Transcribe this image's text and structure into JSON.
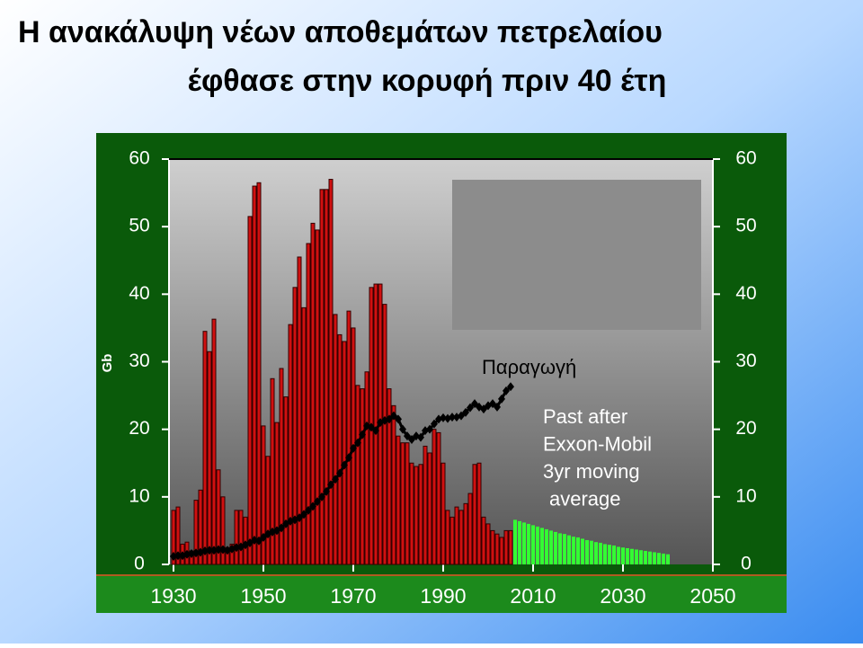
{
  "chart_data": {
    "type": "bar",
    "title": [
      "Η ανακάλυψη νέων αποθεμάτων πετρελαίου",
      "έφθασε στην κορυφή πριν 40 έτη"
    ],
    "ylabel": "Gb",
    "xlim": [
      1929,
      2050
    ],
    "ylim": [
      0,
      60
    ],
    "xticks": [
      1930,
      1950,
      1970,
      1990,
      2010,
      2030,
      2050
    ],
    "yticks": [
      0,
      10,
      20,
      30,
      40,
      50,
      60
    ],
    "note": [
      "Past after",
      "Exxon-Mobil",
      "3yr moving",
      "average"
    ],
    "series": [
      {
        "kind": "bar",
        "color": "#d01010",
        "x": [
          1930,
          1931,
          1932,
          1933,
          1934,
          1935,
          1936,
          1937,
          1938,
          1939,
          1940,
          1941,
          1942,
          1943,
          1944,
          1945,
          1946,
          1947,
          1948,
          1949,
          1950,
          1951,
          1952,
          1953,
          1954,
          1955,
          1956,
          1957,
          1958,
          1959,
          1960,
          1961,
          1962,
          1963,
          1964,
          1965,
          1966,
          1967,
          1968,
          1969,
          1970,
          1971,
          1972,
          1973,
          1974,
          1975,
          1976,
          1977,
          1978,
          1979,
          1980,
          1981,
          1982,
          1983,
          1984,
          1985,
          1986,
          1987,
          1988,
          1989,
          1990,
          1991,
          1992,
          1993,
          1994,
          1995,
          1996,
          1997,
          1998,
          1999,
          2000,
          2001,
          2002,
          2003,
          2004,
          2005
        ],
        "values": [
          8,
          8.5,
          3,
          3.3,
          2,
          9.5,
          11,
          34.5,
          31.5,
          36.3,
          14,
          10,
          2.5,
          3,
          8,
          8,
          7,
          51.5,
          56,
          56.5,
          20.5,
          16,
          27.5,
          21,
          29,
          24.8,
          35.5,
          41,
          45.5,
          38,
          47.5,
          50.5,
          49.5,
          55.5,
          55.5,
          57,
          37,
          34,
          33,
          37.5,
          35,
          26.5,
          26,
          28.5,
          41,
          41.5,
          41.5,
          38.5,
          26,
          23.5,
          19,
          18,
          18,
          15,
          14.5,
          14.8,
          17.5,
          16.5,
          20,
          19.5,
          15,
          8,
          7,
          8.5,
          8,
          9,
          10.5,
          14.8,
          15,
          7,
          6,
          5,
          4.5,
          4,
          5,
          5
        ]
      },
      {
        "kind": "line",
        "name": "Παραγωγή",
        "color": "#000000",
        "x": [
          1930,
          1931,
          1932,
          1933,
          1934,
          1935,
          1936,
          1937,
          1938,
          1939,
          1940,
          1941,
          1942,
          1943,
          1944,
          1945,
          1946,
          1947,
          1948,
          1949,
          1950,
          1951,
          1952,
          1953,
          1954,
          1955,
          1956,
          1957,
          1958,
          1959,
          1960,
          1961,
          1962,
          1963,
          1964,
          1965,
          1966,
          1967,
          1968,
          1969,
          1970,
          1971,
          1972,
          1973,
          1974,
          1975,
          1976,
          1977,
          1978,
          1979,
          1980,
          1981,
          1982,
          1983,
          1984,
          1985,
          1986,
          1987,
          1988,
          1989,
          1990,
          1991,
          1992,
          1993,
          1994,
          1995,
          1996,
          1997,
          1998,
          1999,
          2000,
          2001,
          2002,
          2003,
          2004,
          2005
        ],
        "values": [
          1.2,
          1.3,
          1.3,
          1.5,
          1.6,
          1.7,
          1.8,
          2.0,
          2.1,
          2.1,
          2.2,
          2.2,
          2.1,
          2.3,
          2.5,
          2.6,
          2.9,
          3.2,
          3.6,
          3.5,
          4.0,
          4.5,
          4.8,
          5.0,
          5.4,
          6.0,
          6.4,
          6.6,
          6.9,
          7.4,
          8.0,
          8.6,
          9.3,
          10.0,
          10.8,
          11.8,
          12.6,
          13.5,
          14.7,
          15.8,
          17.2,
          18.0,
          19.2,
          20.5,
          20.3,
          19.8,
          21.0,
          21.3,
          21.5,
          22.0,
          21.5,
          20.0,
          19.0,
          18.5,
          19.0,
          18.8,
          19.8,
          20.0,
          20.8,
          21.5,
          21.7,
          21.6,
          21.8,
          21.8,
          22.0,
          22.5,
          23.2,
          23.8,
          23.3,
          23.0,
          23.5,
          23.8,
          23.3,
          24.5,
          25.7,
          26.3
        ]
      },
      {
        "kind": "bar",
        "color": "#33ff33",
        "x": [
          2006,
          2007,
          2008,
          2009,
          2010,
          2011,
          2012,
          2013,
          2014,
          2015,
          2016,
          2017,
          2018,
          2019,
          2020,
          2021,
          2022,
          2023,
          2024,
          2025,
          2026,
          2027,
          2028,
          2029,
          2030,
          2031,
          2032,
          2033,
          2034,
          2035,
          2036,
          2037,
          2038,
          2039,
          2040
        ],
        "values": [
          6.6,
          6.4,
          6.2,
          6.0,
          5.8,
          5.6,
          5.4,
          5.2,
          5.0,
          4.8,
          4.6,
          4.5,
          4.3,
          4.1,
          4.0,
          3.8,
          3.6,
          3.5,
          3.3,
          3.2,
          3.0,
          2.9,
          2.8,
          2.6,
          2.5,
          2.4,
          2.3,
          2.2,
          2.1,
          2.0,
          1.9,
          1.8,
          1.7,
          1.6,
          1.5
        ]
      }
    ]
  }
}
